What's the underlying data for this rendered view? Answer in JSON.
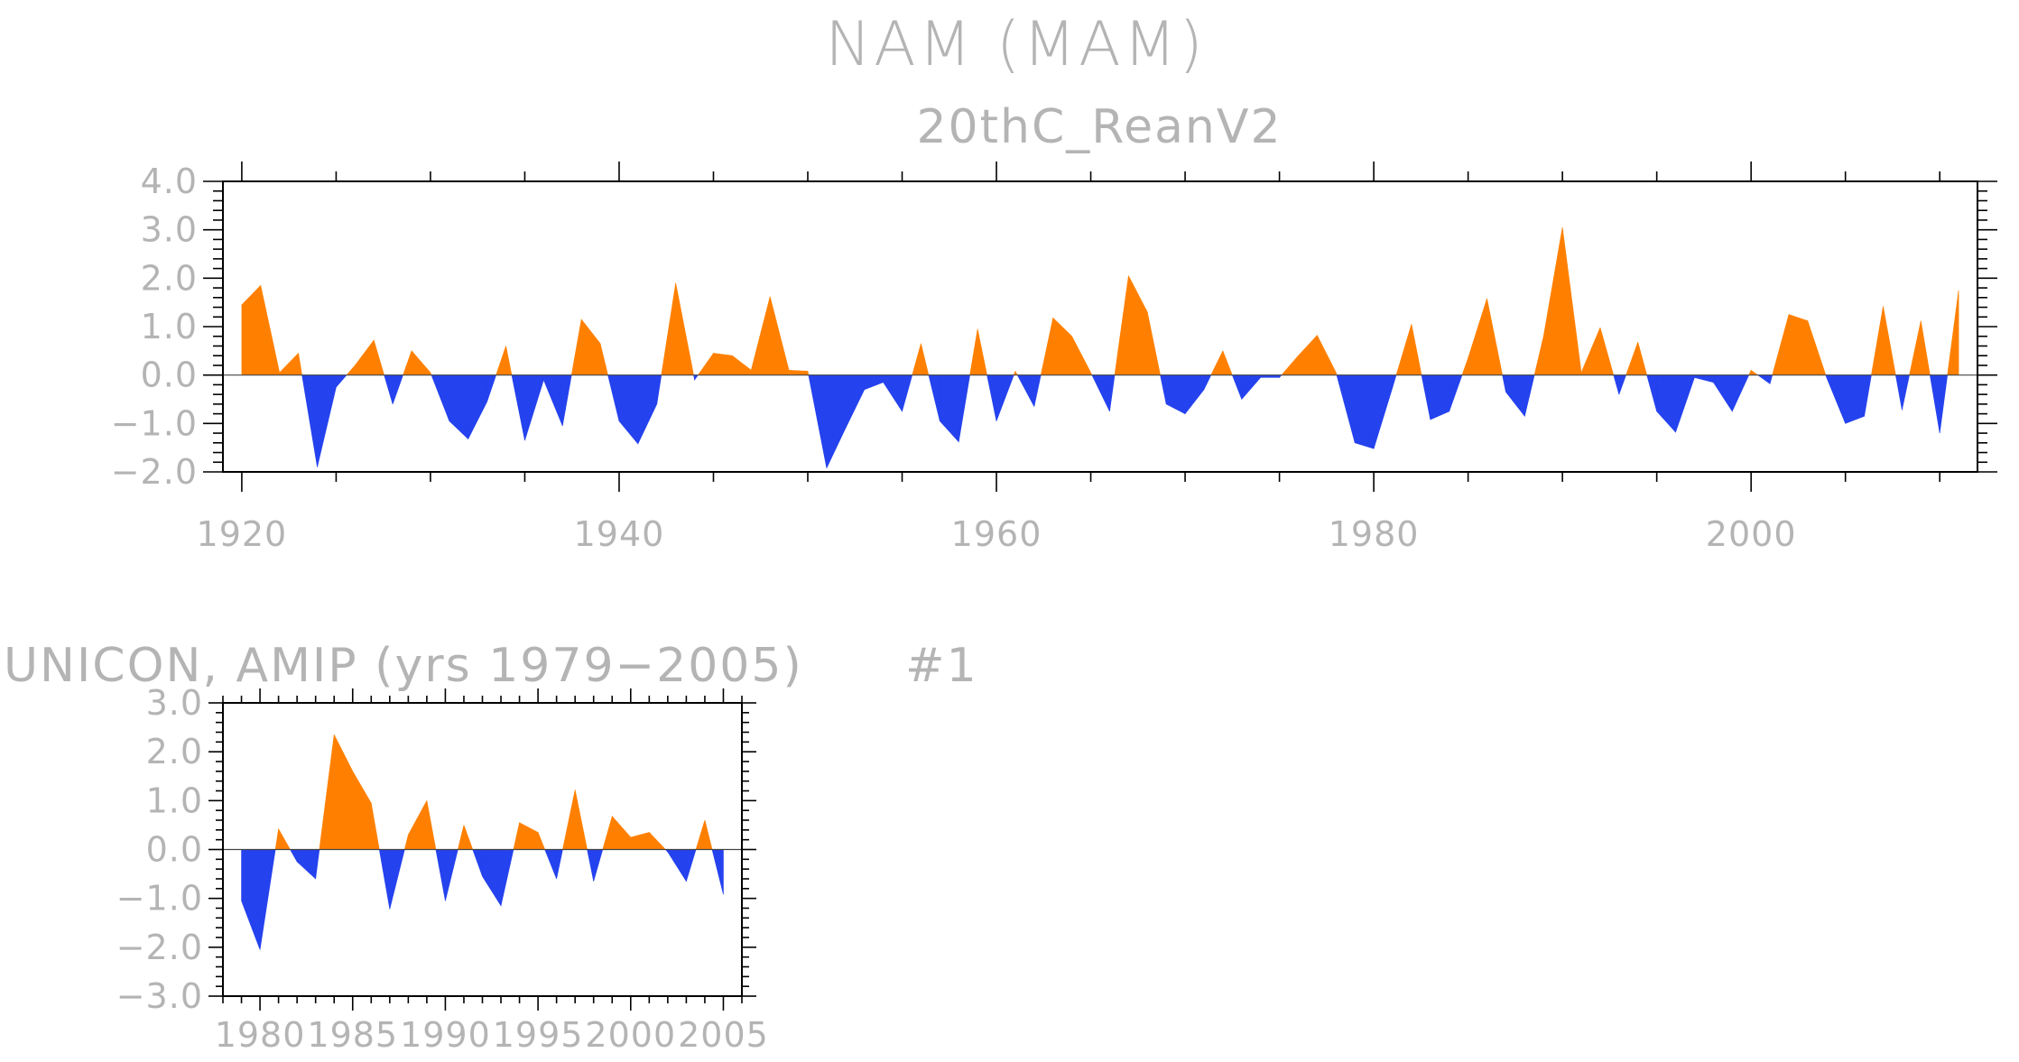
{
  "title": "NAM (MAM)",
  "chart_data": [
    {
      "type": "area",
      "title": "20thC_ReanV2",
      "xlim": [
        1919,
        2012
      ],
      "ylim": [
        -2.0,
        4.0
      ],
      "x_ticks": [
        1920,
        1940,
        1960,
        1980,
        2000
      ],
      "x_ticks_text": [
        "1920",
        "1940",
        "1960",
        "1980",
        "2000"
      ],
      "y_ticks": [
        4.0,
        3.0,
        2.0,
        1.0,
        0.0,
        -1.0,
        -2.0
      ],
      "y_ticks_text": [
        "4.0",
        "3.0",
        "2.0",
        "1.0",
        "0.0",
        "−1.0",
        "−2.0"
      ],
      "positive_color": "#ff8000",
      "negative_color": "#2442ee",
      "x": [
        1920,
        1921,
        1922,
        1923,
        1924,
        1925,
        1926,
        1927,
        1928,
        1929,
        1930,
        1931,
        1932,
        1933,
        1934,
        1935,
        1936,
        1937,
        1938,
        1939,
        1940,
        1941,
        1942,
        1943,
        1944,
        1945,
        1946,
        1947,
        1948,
        1949,
        1950,
        1951,
        1952,
        1953,
        1954,
        1955,
        1956,
        1957,
        1958,
        1959,
        1960,
        1961,
        1962,
        1963,
        1964,
        1965,
        1966,
        1967,
        1968,
        1969,
        1970,
        1971,
        1972,
        1973,
        1974,
        1975,
        1976,
        1977,
        1978,
        1979,
        1980,
        1981,
        1982,
        1983,
        1984,
        1985,
        1986,
        1987,
        1988,
        1989,
        1990,
        1991,
        1992,
        1993,
        1994,
        1995,
        1996,
        1997,
        1998,
        1999,
        2000,
        2001,
        2002,
        2003,
        2004,
        2005,
        2006,
        2007,
        2008,
        2009,
        2010,
        2011
      ],
      "y": [
        1.45,
        1.85,
        0.05,
        0.45,
        -1.9,
        -0.25,
        0.2,
        0.72,
        -0.6,
        0.5,
        0.05,
        -0.95,
        -1.32,
        -0.55,
        0.6,
        -1.35,
        -0.1,
        -1.05,
        1.15,
        0.65,
        -0.95,
        -1.42,
        -0.6,
        1.9,
        -0.1,
        0.45,
        0.4,
        0.1,
        1.62,
        0.1,
        0.08,
        -1.92,
        -1.1,
        -0.3,
        -0.15,
        -0.75,
        0.65,
        -0.95,
        -1.38,
        0.95,
        -0.95,
        0.08,
        -0.65,
        1.18,
        0.8,
        0.05,
        -0.75,
        2.05,
        1.3,
        -0.6,
        -0.8,
        -0.3,
        0.5,
        -0.5,
        -0.05,
        -0.05,
        0.4,
        0.82,
        0.05,
        -1.4,
        -1.52,
        -0.25,
        1.05,
        -0.92,
        -0.75,
        0.35,
        1.58,
        -0.35,
        -0.85,
        0.8,
        3.05,
        0.05,
        0.98,
        -0.4,
        0.68,
        -0.75,
        -1.18,
        -0.05,
        -0.15,
        -0.75,
        0.1,
        -0.18,
        1.25,
        1.12,
        -0.05,
        -1.0,
        -0.85,
        1.42,
        -0.72,
        1.12,
        -1.2,
        1.75
      ]
    },
    {
      "type": "area",
      "title": "UNICON, AMIP (yrs 1979−2005)",
      "label": "#1",
      "xlim": [
        1978,
        2006
      ],
      "ylim": [
        -3.0,
        3.0
      ],
      "x_ticks": [
        1980,
        1985,
        1990,
        1995,
        2000,
        2005
      ],
      "x_ticks_text": [
        "1980",
        "1985",
        "1990",
        "1995",
        "2000",
        "2005"
      ],
      "y_ticks": [
        3.0,
        2.0,
        1.0,
        0.0,
        -1.0,
        -2.0,
        -3.0
      ],
      "y_ticks_text": [
        "3.0",
        "2.0",
        "1.0",
        "0.0",
        "−1.0",
        "−2.0",
        "−3.0"
      ],
      "positive_color": "#ff8000",
      "negative_color": "#2442ee",
      "x": [
        1979,
        1980,
        1981,
        1982,
        1983,
        1984,
        1985,
        1986,
        1987,
        1988,
        1989,
        1990,
        1991,
        1992,
        1993,
        1994,
        1995,
        1996,
        1997,
        1998,
        1999,
        2000,
        2001,
        2002,
        2003,
        2004,
        2005
      ],
      "y": [
        -1.05,
        -2.05,
        0.42,
        -0.25,
        -0.6,
        2.35,
        1.6,
        0.95,
        -1.22,
        0.3,
        1.0,
        -1.05,
        0.5,
        -0.55,
        -1.15,
        0.55,
        0.35,
        -0.6,
        1.22,
        -0.65,
        0.68,
        0.25,
        0.35,
        -0.05,
        -0.65,
        0.6,
        -0.92
      ]
    }
  ]
}
